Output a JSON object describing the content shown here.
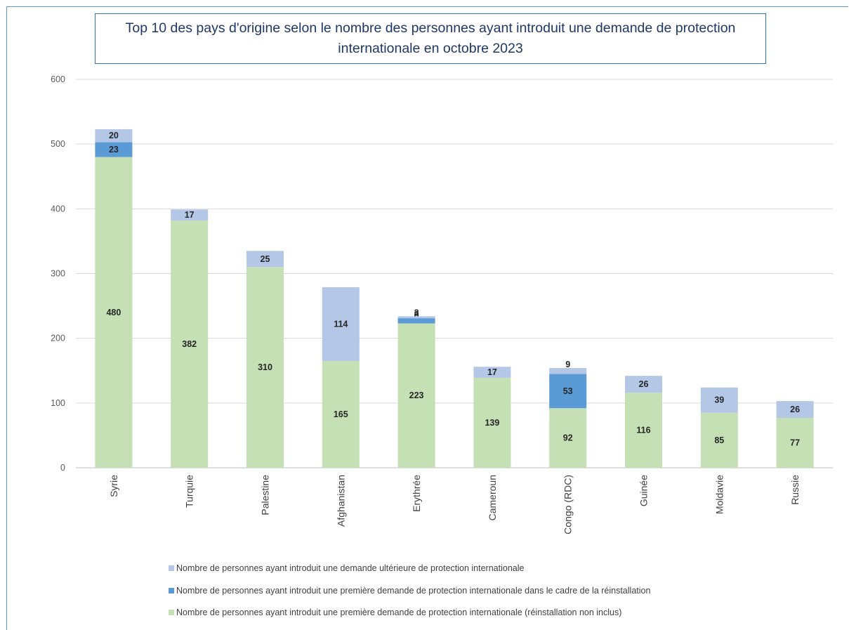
{
  "chart_data": {
    "type": "bar",
    "stacked": true,
    "title": "Top 10 des pays d'origine selon le nombre des personnes ayant introduit une demande de protection internationale en octobre 2023",
    "categories": [
      "Syrie",
      "Turquie",
      "Palestine",
      "Afghanistan",
      "Erythrée",
      "Cameroun",
      "Congo (RDC)",
      "Guinée",
      "Moldavie",
      "Russie"
    ],
    "ylim": [
      0,
      600
    ],
    "yticks": [
      0,
      100,
      200,
      300,
      400,
      500,
      600
    ],
    "grid": true,
    "legend_position": "bottom",
    "series": [
      {
        "name": "Nombre de personnes ayant introduit une première demande de protection internationale (réinstallation non inclus)",
        "color": "#c5e0b4",
        "values": [
          480,
          382,
          310,
          165,
          223,
          139,
          92,
          116,
          85,
          77
        ]
      },
      {
        "name": "Nombre de personnes ayant introduit une première demande de protection internationale dans le cadre de la réinstallation",
        "color": "#5b9bd5",
        "values": [
          23,
          null,
          null,
          null,
          8,
          null,
          53,
          null,
          null,
          null
        ]
      },
      {
        "name": "Nombre de personnes ayant introduit une demande ultérieure de protection internationale",
        "color": "#b4c7e7",
        "values": [
          20,
          17,
          25,
          114,
          3,
          17,
          9,
          26,
          39,
          26
        ]
      }
    ],
    "legend_order": [
      2,
      1,
      0
    ]
  }
}
